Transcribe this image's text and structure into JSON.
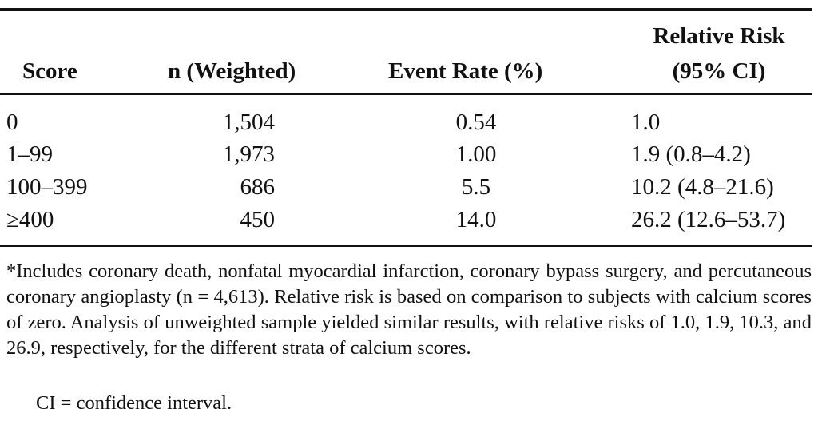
{
  "table": {
    "header": [
      "Score",
      "n (Weighted)",
      "Event Rate (%)",
      "Relative Risk (95% CI)"
    ],
    "header_lines": {
      "relative_risk_1": "Relative Risk",
      "relative_risk_2": "(95% CI)"
    },
    "rows": [
      [
        "0",
        "1,504",
        "0.54",
        "1.0"
      ],
      [
        "1–99",
        "1,973",
        "1.00",
        "1.9 (0.8–4.2)"
      ],
      [
        "100–399",
        "686",
        "5.5",
        "10.2 (4.8–21.6)"
      ],
      [
        "≥400",
        "450",
        "14.0",
        "26.2 (12.6–53.7)"
      ]
    ]
  },
  "footnote": "*Includes coronary death, nonfatal myocardial infarction, coronary bypass surgery, and percutaneous coronary angioplasty (n = 4,613). Relative risk is based on comparison to subjects with calcium scores of zero. Analysis of unweighted sample yielded similar results, with relative risks of 1.0, 1.9, 10.3, and 26.9, respectively, for the different strata of calcium scores.",
  "abbreviation": "CI = confidence interval."
}
